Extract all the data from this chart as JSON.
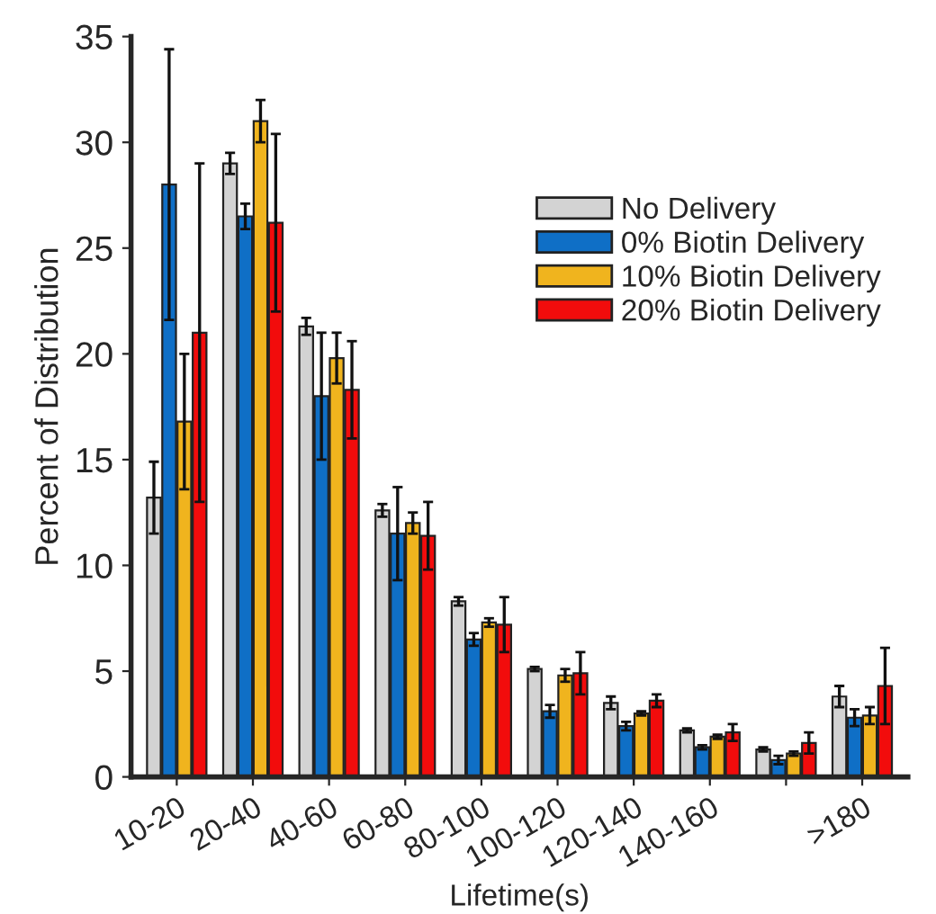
{
  "chart_data": {
    "type": "bar",
    "xlabel": "Lifetime(s)",
    "ylabel": "Percent of Distribution",
    "categories": [
      "10-20",
      "20-40",
      "40-60",
      "60-80",
      "80-100",
      "100-120",
      "120-140",
      "140-160",
      null,
      ">180"
    ],
    "series": [
      {
        "name": "No Delivery",
        "color": "#d3d3d3",
        "values": [
          13.2,
          29,
          21.3,
          12.6,
          8.3,
          5.1,
          3.5,
          2.2,
          1.3,
          3.8
        ],
        "errors": [
          1.7,
          0.5,
          0.4,
          0.3,
          0.2,
          0.1,
          0.3,
          0.1,
          0.1,
          0.5
        ]
      },
      {
        "name": "0% Biotin Delivery",
        "color": "#0f6fc6",
        "values": [
          28,
          26.5,
          18,
          11.5,
          6.5,
          3.1,
          2.4,
          1.4,
          0.8,
          2.8
        ],
        "errors": [
          6.4,
          0.6,
          3,
          2.2,
          0.3,
          0.3,
          0.2,
          0.1,
          0.2,
          0.4
        ]
      },
      {
        "name": "10% Biotin Delivery",
        "color": "#f0b41e",
        "values": [
          16.8,
          31,
          19.8,
          12,
          7.3,
          4.8,
          3,
          1.9,
          1.1,
          2.9
        ],
        "errors": [
          3.2,
          1,
          1.2,
          0.5,
          0.2,
          0.3,
          0.1,
          0.1,
          0.1,
          0.4
        ]
      },
      {
        "name": "20% Biotin Delivery",
        "color": "#f20c0c",
        "values": [
          21,
          26.2,
          18.3,
          11.4,
          7.2,
          4.9,
          3.6,
          2.1,
          1.6,
          4.3
        ],
        "errors": [
          8,
          4.2,
          2.3,
          1.6,
          1.3,
          1,
          0.3,
          0.4,
          0.5,
          1.8
        ]
      }
    ],
    "ylim": [
      0,
      35
    ],
    "yticks": [
      0,
      5,
      10,
      15,
      20,
      25,
      30,
      35
    ],
    "grid": false,
    "legend": "top right"
  }
}
